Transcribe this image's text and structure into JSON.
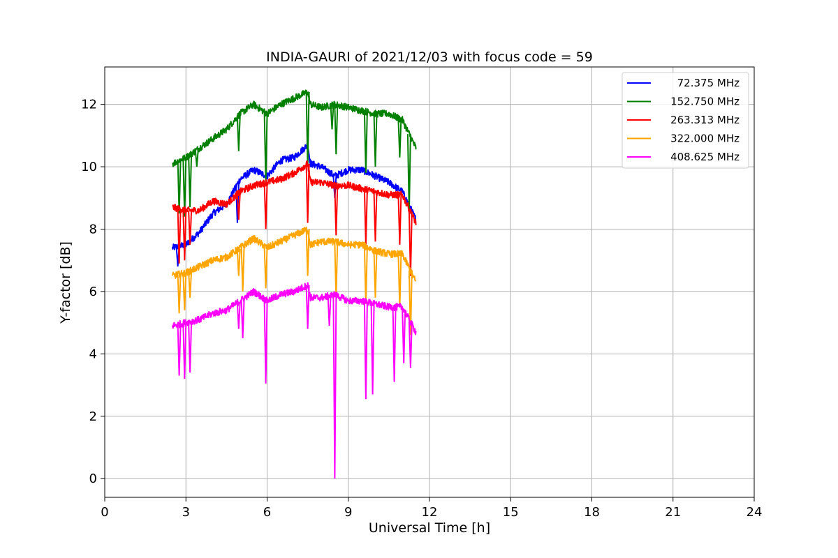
{
  "chart_data": {
    "type": "line",
    "title": "INDIA-GAURI of 2021/12/03 with focus code = 59",
    "xlabel": "Universal Time [h]",
    "ylabel": "Y-factor [dB]",
    "xlim": [
      0,
      24
    ],
    "ylim": [
      -0.6,
      13.2
    ],
    "xticks": [
      0,
      3,
      6,
      9,
      12,
      15,
      18,
      21,
      24
    ],
    "yticks": [
      0,
      2,
      4,
      6,
      8,
      10,
      12
    ],
    "grid": true,
    "legend_position": "top-right",
    "series": [
      {
        "name": "72.375 MHz",
        "color": "#0000ff",
        "x": [
          2.5,
          3.0,
          3.5,
          4.0,
          4.5,
          5.0,
          5.5,
          6.0,
          6.5,
          7.0,
          7.5,
          7.6,
          8.0,
          8.5,
          9.0,
          9.5,
          10.0,
          10.5,
          11.0,
          11.5
        ],
        "y": [
          7.4,
          7.5,
          7.9,
          8.5,
          8.8,
          9.6,
          9.9,
          9.7,
          10.2,
          10.3,
          10.7,
          10.1,
          10.0,
          9.7,
          9.9,
          9.9,
          9.7,
          9.5,
          9.2,
          8.3
        ],
        "spikes": [
          {
            "x": 2.7,
            "y": 6.8
          },
          {
            "x": 4.9,
            "y": 8.2
          },
          {
            "x": 8.5,
            "y": 9.0
          }
        ]
      },
      {
        "name": "152.750 MHz",
        "color": "#008000",
        "x": [
          2.5,
          3.0,
          3.5,
          4.0,
          4.5,
          5.0,
          5.5,
          6.0,
          6.5,
          7.0,
          7.5,
          7.6,
          8.0,
          8.5,
          9.0,
          9.5,
          10.0,
          10.5,
          11.0,
          11.5
        ],
        "y": [
          10.1,
          10.3,
          10.6,
          10.9,
          11.2,
          11.7,
          12.0,
          11.7,
          12.0,
          12.2,
          12.4,
          12.0,
          11.9,
          12.0,
          11.9,
          11.8,
          11.7,
          11.7,
          11.5,
          10.6
        ],
        "spikes": [
          {
            "x": 2.75,
            "y": 8.5
          },
          {
            "x": 2.95,
            "y": 8.4
          },
          {
            "x": 3.15,
            "y": 8.7
          },
          {
            "x": 3.4,
            "y": 10.0
          },
          {
            "x": 4.95,
            "y": 10.5
          },
          {
            "x": 5.95,
            "y": 9.5
          },
          {
            "x": 7.5,
            "y": 10.0
          },
          {
            "x": 8.4,
            "y": 11.2
          },
          {
            "x": 8.55,
            "y": 10.4
          },
          {
            "x": 9.65,
            "y": 9.8
          },
          {
            "x": 10.0,
            "y": 10.0
          },
          {
            "x": 10.9,
            "y": 10.3
          },
          {
            "x": 11.25,
            "y": 8.5
          }
        ]
      },
      {
        "name": "263.313 MHz",
        "color": "#ff0000",
        "x": [
          2.5,
          3.0,
          3.5,
          4.0,
          4.5,
          5.0,
          5.5,
          6.0,
          6.5,
          7.0,
          7.5,
          7.6,
          8.0,
          8.5,
          9.0,
          9.5,
          10.0,
          10.5,
          11.0,
          11.5
        ],
        "y": [
          8.7,
          8.6,
          8.6,
          8.9,
          8.8,
          9.2,
          9.4,
          9.5,
          9.6,
          9.8,
          10.1,
          9.5,
          9.5,
          9.4,
          9.4,
          9.3,
          9.2,
          9.1,
          9.1,
          8.2
        ],
        "spikes": [
          {
            "x": 2.75,
            "y": 6.9
          },
          {
            "x": 2.95,
            "y": 7.0
          },
          {
            "x": 3.15,
            "y": 7.5
          },
          {
            "x": 4.95,
            "y": 8.3
          },
          {
            "x": 5.95,
            "y": 8.0
          },
          {
            "x": 7.5,
            "y": 8.2
          },
          {
            "x": 8.55,
            "y": 7.8
          },
          {
            "x": 9.65,
            "y": 7.5
          },
          {
            "x": 10.0,
            "y": 7.6
          },
          {
            "x": 10.9,
            "y": 7.5
          },
          {
            "x": 11.3,
            "y": 6.5
          }
        ]
      },
      {
        "name": "322.000 MHz",
        "color": "#ffa500",
        "x": [
          2.5,
          3.0,
          3.5,
          4.0,
          4.5,
          5.0,
          5.5,
          6.0,
          6.5,
          7.0,
          7.5,
          7.6,
          8.0,
          8.5,
          9.0,
          9.5,
          10.0,
          10.5,
          11.0,
          11.5
        ],
        "y": [
          6.5,
          6.6,
          6.8,
          7.0,
          7.1,
          7.4,
          7.7,
          7.4,
          7.6,
          7.8,
          8.0,
          7.5,
          7.6,
          7.6,
          7.5,
          7.5,
          7.3,
          7.2,
          7.2,
          6.3
        ],
        "spikes": [
          {
            "x": 2.75,
            "y": 5.3
          },
          {
            "x": 2.95,
            "y": 5.4
          },
          {
            "x": 3.15,
            "y": 5.8
          },
          {
            "x": 4.95,
            "y": 6.5
          },
          {
            "x": 5.1,
            "y": 6.0
          },
          {
            "x": 5.95,
            "y": 6.1
          },
          {
            "x": 7.5,
            "y": 6.5
          },
          {
            "x": 8.55,
            "y": 5.8
          },
          {
            "x": 9.65,
            "y": 5.6
          },
          {
            "x": 10.0,
            "y": 5.8
          },
          {
            "x": 10.9,
            "y": 5.5
          },
          {
            "x": 11.3,
            "y": 4.6
          }
        ]
      },
      {
        "name": "408.625 MHz",
        "color": "#ff00ff",
        "x": [
          2.5,
          3.0,
          3.5,
          4.0,
          4.5,
          5.0,
          5.5,
          6.0,
          6.5,
          7.0,
          7.5,
          7.6,
          8.0,
          8.5,
          9.0,
          9.5,
          10.0,
          10.5,
          11.0,
          11.5
        ],
        "y": [
          4.9,
          5.0,
          5.1,
          5.3,
          5.4,
          5.7,
          6.0,
          5.7,
          5.9,
          6.0,
          6.2,
          5.8,
          5.8,
          5.9,
          5.7,
          5.7,
          5.6,
          5.5,
          5.5,
          4.7
        ],
        "spikes": [
          {
            "x": 2.75,
            "y": 3.3
          },
          {
            "x": 2.95,
            "y": 3.2
          },
          {
            "x": 3.15,
            "y": 3.4
          },
          {
            "x": 4.95,
            "y": 4.8
          },
          {
            "x": 5.1,
            "y": 4.5
          },
          {
            "x": 5.95,
            "y": 3.05
          },
          {
            "x": 7.5,
            "y": 4.8
          },
          {
            "x": 8.3,
            "y": 4.9
          },
          {
            "x": 8.5,
            "y": 0.0
          },
          {
            "x": 9.65,
            "y": 2.55
          },
          {
            "x": 9.9,
            "y": 2.7
          },
          {
            "x": 10.7,
            "y": 3.1
          },
          {
            "x": 11.05,
            "y": 3.7
          },
          {
            "x": 11.3,
            "y": 3.55
          }
        ]
      }
    ]
  }
}
